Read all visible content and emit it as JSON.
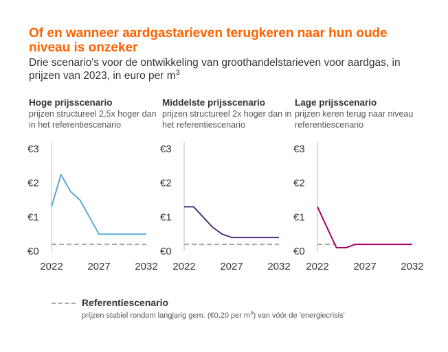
{
  "header": {
    "title": "Of en wanneer aardgastarieven terugkeren naar hun oude niveau is onzeker",
    "subtitle": "Drie scenario's voor de ontwikkeling van groothandelstarieven voor aardgas, in prijzen van 2023, in euro per m",
    "subtitle_sup": "3"
  },
  "colors": {
    "title": "#FF6200",
    "high": "#5BA9D8",
    "middle": "#52307C",
    "low": "#AB0066",
    "reference": "#A8A8A8",
    "axis": "#BDBDBD"
  },
  "chart_data": [
    {
      "type": "line",
      "title": "Hoge prijsscenario",
      "subtitle": "prijzen structureel 2,5x hoger dan in het referentiescenario",
      "x_ticks": [
        "2022",
        "2027",
        "2032"
      ],
      "y_ticks": [
        "€0",
        "€1",
        "€2",
        "€3"
      ],
      "xlim": [
        2022,
        2032
      ],
      "ylim": [
        0,
        3
      ],
      "series": [
        {
          "x": [
            2022,
            2023,
            2024,
            2025,
            2026,
            2027,
            2028,
            2029,
            2030,
            2031,
            2032
          ],
          "y": [
            1.3,
            2.25,
            1.75,
            1.5,
            1.0,
            0.5,
            0.5,
            0.5,
            0.5,
            0.5,
            0.5
          ]
        },
        {
          "x": [
            2022,
            2032
          ],
          "y": [
            0.2,
            0.2
          ],
          "dashed": true
        }
      ]
    },
    {
      "type": "line",
      "title": "Middelste prijsscenario",
      "subtitle": "prijzen structureel 2x hoger dan in het referentiescenario",
      "x_ticks": [
        "2022",
        "2027",
        "2032"
      ],
      "y_ticks": [
        "€0",
        "€1",
        "€2",
        "€3"
      ],
      "xlim": [
        2022,
        2032
      ],
      "ylim": [
        0,
        3
      ],
      "series": [
        {
          "x": [
            2022,
            2023,
            2024,
            2025,
            2026,
            2027,
            2028,
            2029,
            2030,
            2031,
            2032
          ],
          "y": [
            1.3,
            1.3,
            1.0,
            0.7,
            0.5,
            0.4,
            0.4,
            0.4,
            0.4,
            0.4,
            0.4
          ]
        },
        {
          "x": [
            2022,
            2032
          ],
          "y": [
            0.2,
            0.2
          ],
          "dashed": true
        }
      ]
    },
    {
      "type": "line",
      "title": "Lage prijsscenario",
      "subtitle": "prijzen keren terug naar niveau referentiescenario",
      "x_ticks": [
        "2022",
        "2027",
        "2032"
      ],
      "y_ticks": [
        "€0",
        "€1",
        "€2",
        "€3"
      ],
      "xlim": [
        2022,
        2032
      ],
      "ylim": [
        0,
        3
      ],
      "series": [
        {
          "x": [
            2022,
            2023,
            2024,
            2025,
            2026,
            2027,
            2028,
            2029,
            2030,
            2031,
            2032
          ],
          "y": [
            1.3,
            0.7,
            0.1,
            0.1,
            0.2,
            0.2,
            0.2,
            0.2,
            0.2,
            0.2,
            0.2
          ]
        },
        {
          "x": [
            2022,
            2024
          ],
          "y": [
            0.2,
            0.2
          ],
          "dashed": true
        }
      ]
    }
  ],
  "legend": {
    "title": "Referentiescenario",
    "desc_before": "prijzen stabiel rondom langjarig gem. (€0,20 per m",
    "desc_sup": "3",
    "desc_after": ") van vóór de 'energiecrisis'"
  }
}
